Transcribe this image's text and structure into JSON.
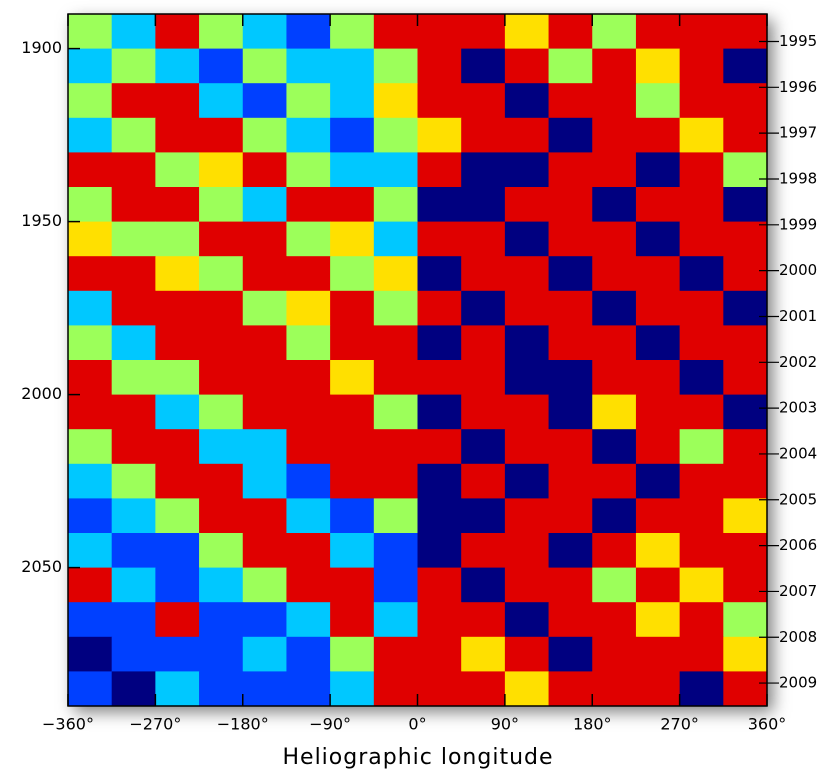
{
  "chart_data": {
    "type": "heatmap",
    "x_label": "Heliographic longitude",
    "x": [
      -337.5,
      -292.5,
      -247.5,
      -202.5,
      -157.5,
      -112.5,
      -67.5,
      -22.5,
      22.5,
      67.5,
      112.5,
      157.5,
      202.5,
      247.5,
      292.5,
      337.5
    ],
    "y": [
      1895,
      1905,
      1915,
      1925,
      1935,
      1945,
      1955,
      1965,
      1975,
      1985,
      1995,
      2005,
      2015,
      2025,
      2035,
      2045,
      2055,
      2065,
      2075,
      2085
    ],
    "colormap": [
      "#000080",
      "#0040ff",
      "#00c8ff",
      "#9cff5a",
      "#ffe000",
      "#e00000"
    ],
    "z": [
      [
        3,
        2,
        5,
        3,
        2,
        1,
        3,
        5,
        5,
        5,
        4,
        5,
        3,
        5,
        5,
        5
      ],
      [
        2,
        3,
        2,
        1,
        3,
        2,
        2,
        3,
        5,
        0,
        5,
        3,
        5,
        4,
        5,
        0
      ],
      [
        3,
        5,
        5,
        2,
        1,
        3,
        2,
        4,
        5,
        5,
        0,
        5,
        5,
        3,
        5,
        5
      ],
      [
        2,
        3,
        5,
        5,
        3,
        2,
        1,
        3,
        4,
        5,
        5,
        0,
        5,
        5,
        4,
        5
      ],
      [
        5,
        5,
        3,
        4,
        5,
        3,
        2,
        2,
        5,
        0,
        0,
        5,
        5,
        0,
        5,
        3
      ],
      [
        3,
        5,
        5,
        3,
        2,
        5,
        5,
        3,
        0,
        0,
        5,
        5,
        0,
        5,
        5,
        0
      ],
      [
        4,
        3,
        3,
        5,
        5,
        3,
        4,
        2,
        5,
        5,
        0,
        5,
        5,
        0,
        5,
        5
      ],
      [
        5,
        5,
        4,
        3,
        5,
        5,
        3,
        4,
        0,
        5,
        5,
        0,
        5,
        5,
        0,
        5
      ],
      [
        2,
        5,
        5,
        5,
        3,
        4,
        5,
        3,
        5,
        0,
        5,
        5,
        0,
        5,
        5,
        0
      ],
      [
        3,
        2,
        5,
        5,
        5,
        3,
        5,
        5,
        0,
        5,
        0,
        5,
        5,
        0,
        5,
        5
      ],
      [
        5,
        3,
        3,
        5,
        5,
        5,
        4,
        5,
        5,
        5,
        0,
        0,
        5,
        5,
        0,
        5
      ],
      [
        5,
        5,
        2,
        3,
        5,
        5,
        5,
        3,
        0,
        5,
        5,
        0,
        4,
        5,
        5,
        0
      ],
      [
        3,
        5,
        5,
        2,
        2,
        5,
        5,
        5,
        5,
        0,
        5,
        5,
        0,
        5,
        3,
        5
      ],
      [
        2,
        3,
        5,
        5,
        2,
        1,
        5,
        5,
        0,
        5,
        0,
        5,
        5,
        0,
        5,
        5
      ],
      [
        1,
        2,
        3,
        5,
        5,
        2,
        1,
        3,
        0,
        0,
        5,
        5,
        0,
        5,
        5,
        4
      ],
      [
        2,
        1,
        1,
        3,
        5,
        5,
        2,
        1,
        0,
        5,
        5,
        0,
        5,
        4,
        5,
        5
      ],
      [
        5,
        2,
        1,
        2,
        3,
        5,
        5,
        1,
        5,
        0,
        5,
        5,
        3,
        5,
        4,
        5
      ],
      [
        1,
        1,
        5,
        1,
        1,
        2,
        5,
        2,
        5,
        5,
        0,
        5,
        5,
        4,
        5,
        3
      ],
      [
        0,
        1,
        1,
        1,
        2,
        1,
        3,
        5,
        5,
        4,
        5,
        0,
        5,
        5,
        5,
        4
      ],
      [
        1,
        0,
        2,
        1,
        1,
        1,
        2,
        5,
        5,
        5,
        4,
        5,
        5,
        5,
        0,
        5
      ]
    ],
    "xlim": [
      -360,
      360
    ],
    "xticks": [
      {
        "value": -360,
        "label": "−360°"
      },
      {
        "value": -270,
        "label": "−270°"
      },
      {
        "value": -180,
        "label": "−180°"
      },
      {
        "value": -90,
        "label": "−90°"
      },
      {
        "value": 0,
        "label": "0°"
      },
      {
        "value": 90,
        "label": "90°"
      },
      {
        "value": 180,
        "label": "180°"
      },
      {
        "value": 270,
        "label": "270°"
      },
      {
        "value": 360,
        "label": "360°"
      }
    ],
    "ylim": [
      1890,
      2090
    ],
    "yticks": [
      1900,
      1950,
      2000,
      2050
    ],
    "y2lim": [
      1994.9,
      2010
    ],
    "y2ticks": [
      {
        "value": 1995.5,
        "label": "1995"
      },
      {
        "value": 1996.5,
        "label": "1996"
      },
      {
        "value": 1997.5,
        "label": "1997"
      },
      {
        "value": 1998.5,
        "label": "1998"
      },
      {
        "value": 1999.5,
        "label": "1999"
      },
      {
        "value": 2000.5,
        "label": "2000"
      },
      {
        "value": 2001.5,
        "label": "2001"
      },
      {
        "value": 2002.5,
        "label": "2002"
      },
      {
        "value": 2003.5,
        "label": "2003"
      },
      {
        "value": 2004.5,
        "label": "2004"
      },
      {
        "value": 2005.5,
        "label": "2005"
      },
      {
        "value": 2006.5,
        "label": "2006"
      },
      {
        "value": 2007.5,
        "label": "2007"
      },
      {
        "value": 2008.5,
        "label": "2008"
      },
      {
        "value": 2009.5,
        "label": "2009"
      }
    ]
  }
}
